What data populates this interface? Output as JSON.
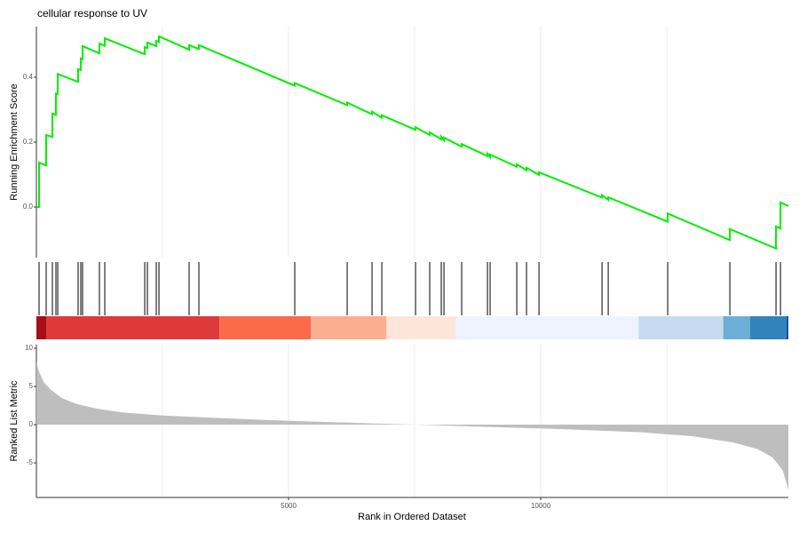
{
  "chart_data": [
    {
      "type": "line",
      "title": "cellular response to UV",
      "ylabel": "Running Enrichment Score",
      "color": "#00ee00",
      "xlim": [
        0,
        14910
      ],
      "ylim": [
        -0.156,
        0.556
      ],
      "yticks": [
        {
          "value": 0,
          "label": "0.0"
        },
        0.2,
        0.4
      ],
      "xgrid": [
        2500,
        5000,
        7500,
        10000,
        12500
      ],
      "x": [
        0,
        52,
        53,
        193,
        194,
        316,
        317,
        386,
        387,
        422,
        423,
        826,
        827,
        879,
        880,
        914,
        915,
        1249,
        1250,
        1355,
        1356,
        2147,
        2148,
        2200,
        2201,
        2376,
        2377,
        2429,
        2430,
        3027,
        3028,
        3221,
        3222,
        5122,
        5123,
        6161,
        6162,
        6654,
        6655,
        6848,
        6849,
        7517,
        7518,
        7798,
        7799,
        8027,
        8028,
        8080,
        8081,
        8432,
        8433,
        8943,
        8944,
        8995,
        8996,
        9524,
        9525,
        9717,
        9718,
        9964,
        9965,
        11214,
        11215,
        11337,
        11338,
        12517,
        12518,
        13749,
        13750,
        14664,
        14665,
        14753,
        14754,
        14910
      ],
      "values": [
        0,
        0,
        0.137,
        0.128,
        0.222,
        0.216,
        0.288,
        0.284,
        0.35,
        0.348,
        0.41,
        0.386,
        0.425,
        0.422,
        0.458,
        0.456,
        0.496,
        0.474,
        0.504,
        0.497,
        0.52,
        0.471,
        0.493,
        0.49,
        0.507,
        0.496,
        0.512,
        0.509,
        0.526,
        0.485,
        0.499,
        0.487,
        0.499,
        0.374,
        0.382,
        0.314,
        0.322,
        0.286,
        0.294,
        0.275,
        0.283,
        0.238,
        0.246,
        0.222,
        0.23,
        0.209,
        0.217,
        0.206,
        0.214,
        0.186,
        0.194,
        0.157,
        0.165,
        0.154,
        0.162,
        0.124,
        0.132,
        0.113,
        0.121,
        0.099,
        0.107,
        0.029,
        0.037,
        0.022,
        0.03,
        -0.045,
        -0.02,
        -0.102,
        -0.068,
        -0.128,
        -0.06,
        -0.066,
        0.014,
        0.003
      ]
    },
    {
      "type": "rug",
      "xlim": [
        0,
        14910
      ],
      "hits": [
        53,
        194,
        317,
        387,
        423,
        827,
        880,
        915,
        1250,
        1356,
        2148,
        2201,
        2377,
        2430,
        3028,
        3222,
        5123,
        6162,
        6655,
        6849,
        7518,
        7799,
        8028,
        8081,
        8433,
        8944,
        8996,
        9525,
        9718,
        9965,
        11215,
        11338,
        12518,
        13750,
        14665,
        14754
      ],
      "band_breaks": [
        0,
        200,
        3630,
        5440,
        6940,
        8320,
        11940,
        13620,
        14150,
        14870,
        14910
      ],
      "band_colors": [
        "#a50f15",
        "#e0393b",
        "#fb6a4a",
        "#fcae91",
        "#fee5d9",
        "#eff3ff",
        "#c6dbef",
        "#6baed6",
        "#3182bd",
        "#08519c"
      ]
    },
    {
      "type": "area",
      "ylabel": "Ranked List Metric",
      "xlabel": "Rank in Ordered Dataset",
      "color": "#bebebe",
      "xlim": [
        0,
        14910
      ],
      "ylim": [
        -9.53,
        10.47
      ],
      "yticks": [
        -5,
        0,
        5,
        10
      ],
      "xticks": [
        5000,
        10000
      ],
      "xgrid": [
        2500,
        5000,
        7500,
        10000,
        12500
      ],
      "x": [
        1,
        50,
        150,
        300,
        500,
        800,
        1200,
        1700,
        2500,
        3500,
        5000,
        6500,
        7500,
        9000,
        10500,
        12000,
        13000,
        13800,
        14300,
        14600,
        14800,
        14910
      ],
      "values": [
        8.2,
        7,
        5.5,
        4.5,
        3.5,
        2.7,
        2.1,
        1.6,
        1.2,
        0.9,
        0.5,
        0.2,
        0,
        -0.3,
        -0.6,
        -1,
        -1.5,
        -2.3,
        -3.2,
        -4.3,
        -6,
        -8.5
      ]
    }
  ]
}
